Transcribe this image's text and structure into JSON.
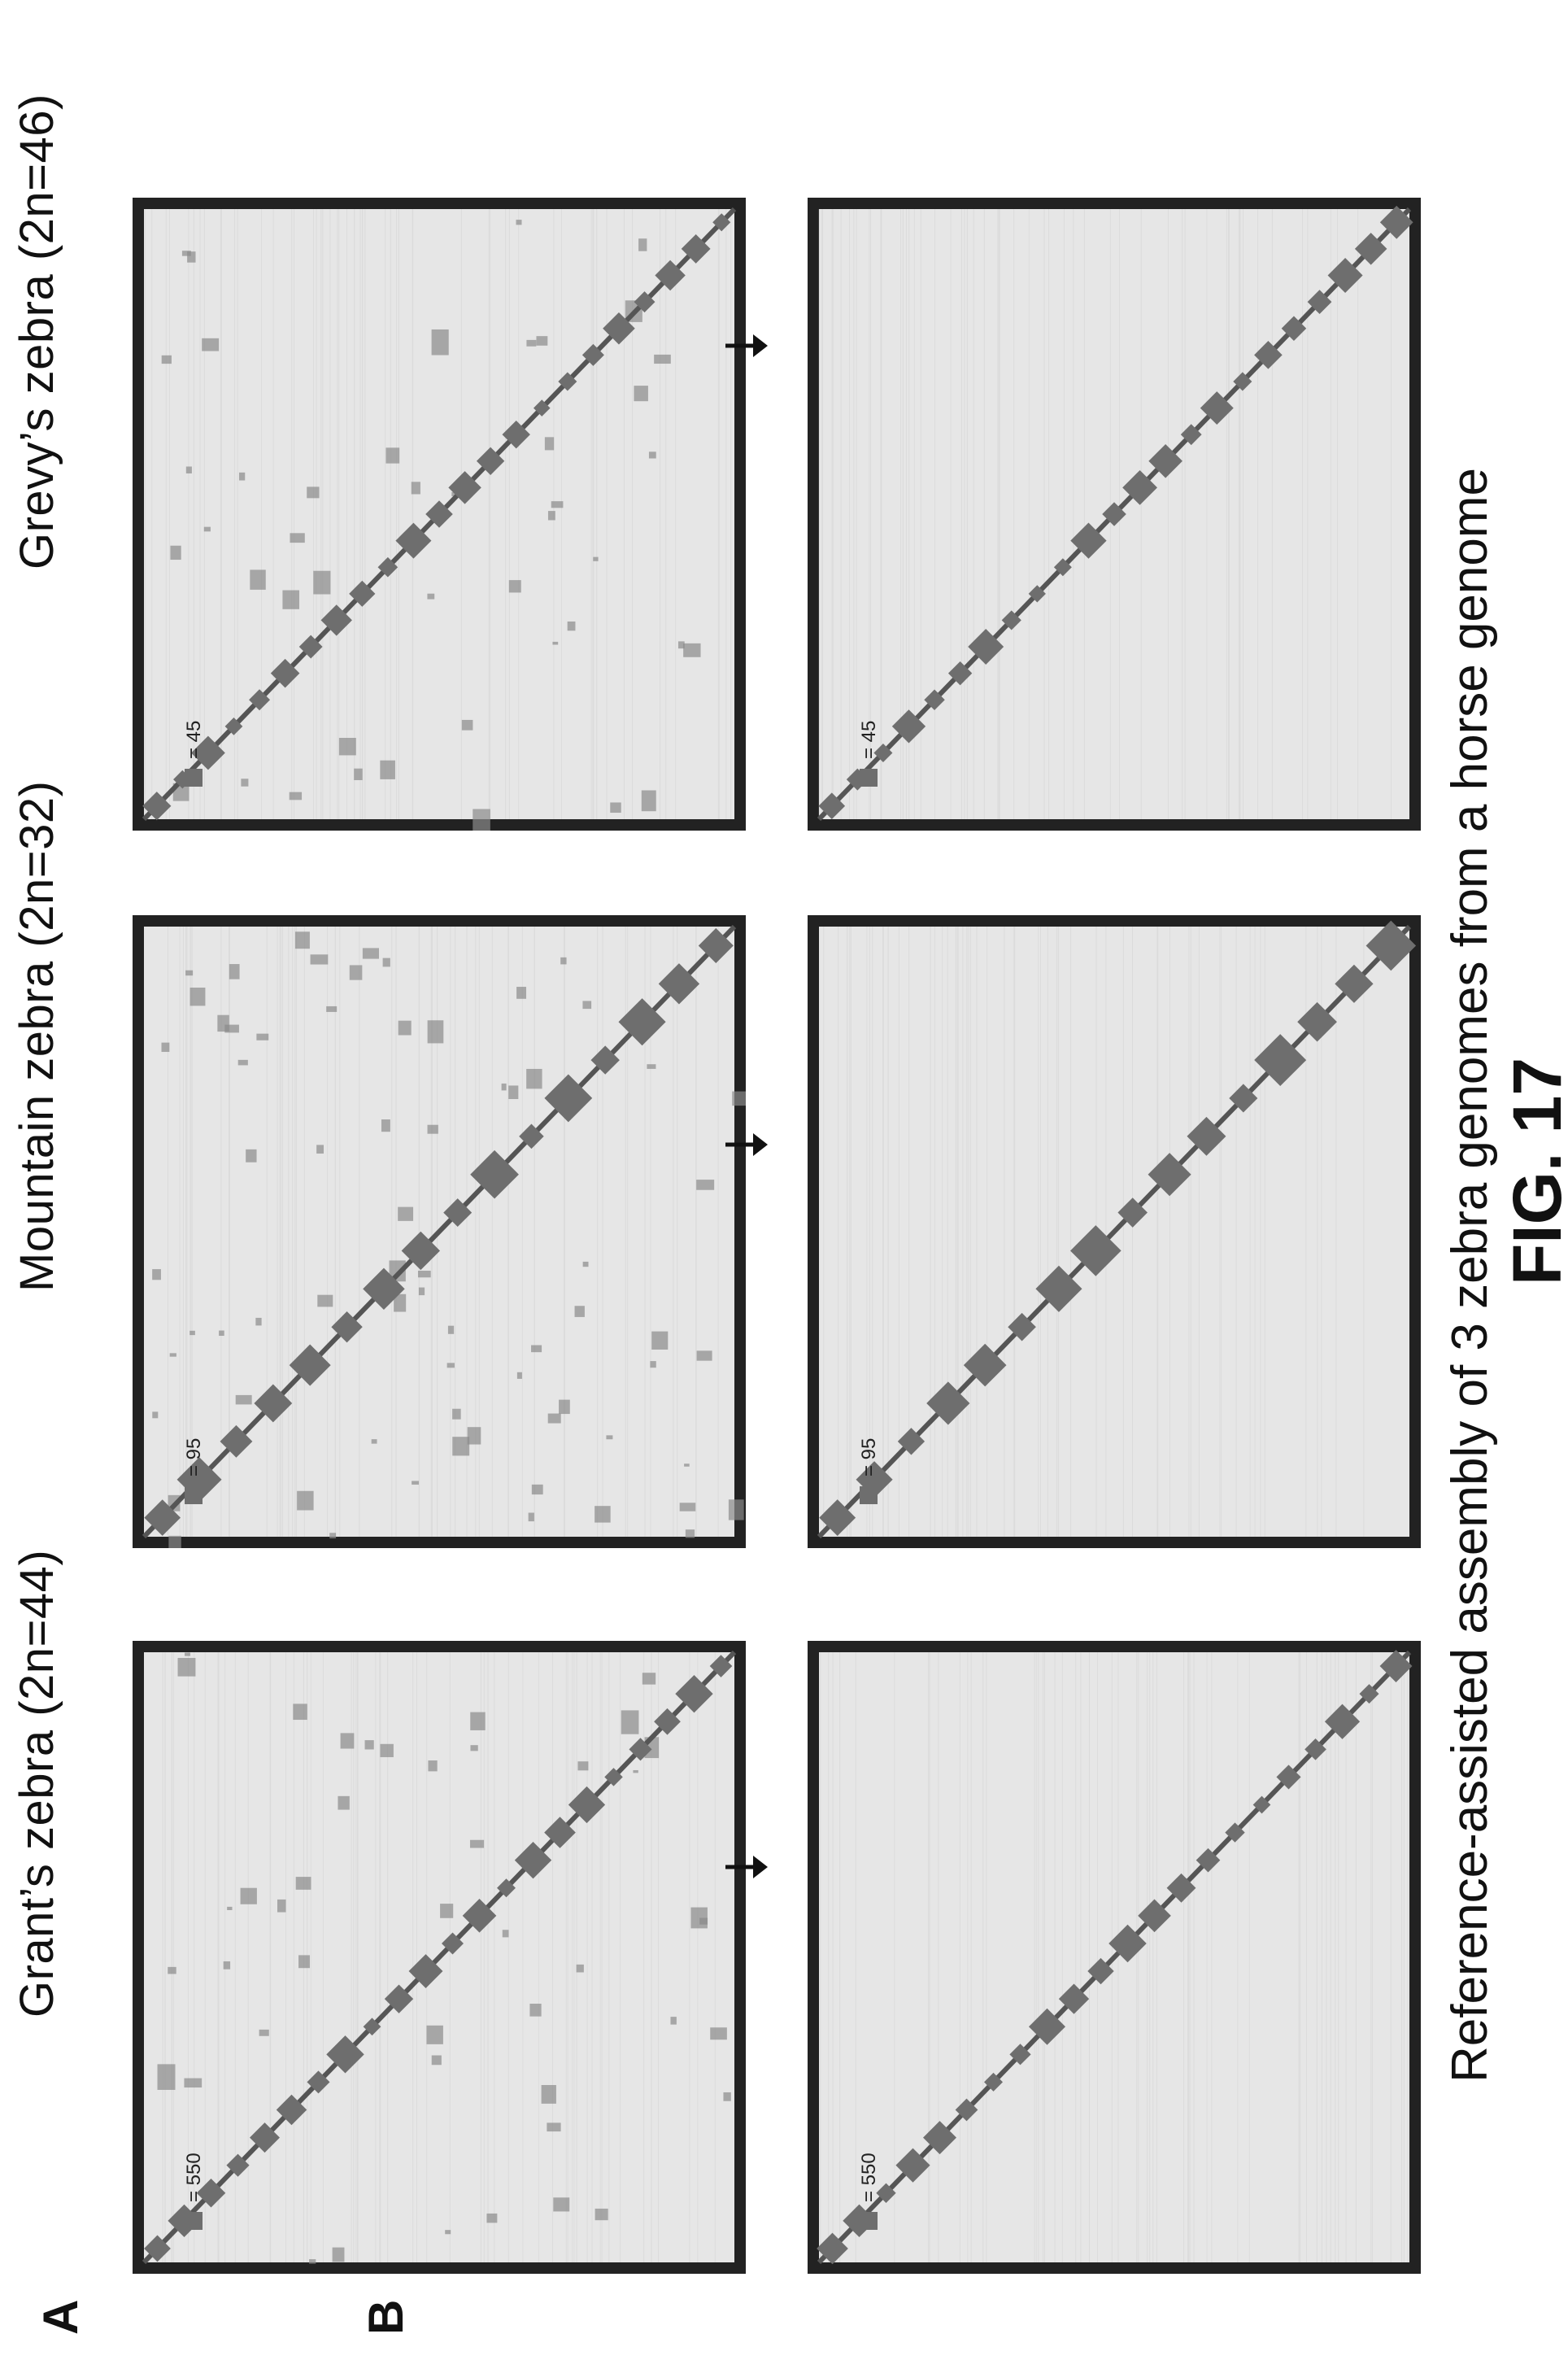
{
  "figure": {
    "label": "FIG. 17",
    "caption": "Reference-assisted assembly of 3 zebra genomes from a horse genome",
    "panel_labels": {
      "a": "A",
      "b": "B"
    },
    "columns": [
      {
        "title": "Grant’s zebra (2n=44)",
        "legend": "= 550",
        "blocks": 22
      },
      {
        "title": "Mountain zebra (2n=32)",
        "legend": "= 95",
        "blocks": 16
      },
      {
        "title": "Grevy’s zebra (2n=46)",
        "legend": "= 45",
        "blocks": 23
      }
    ]
  },
  "colors": {
    "frame": "#222222",
    "background": "#e6e6e6",
    "dense": "#6e6e6e",
    "diagonal": "#555555"
  }
}
